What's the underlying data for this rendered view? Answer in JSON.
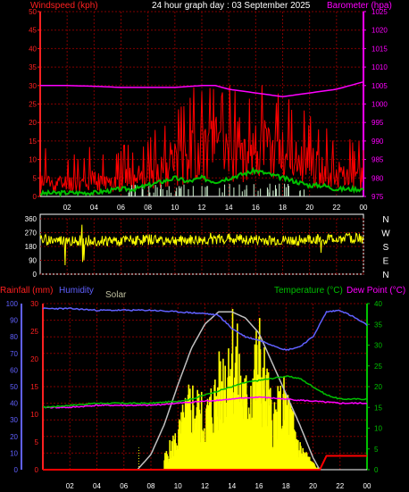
{
  "colors": {
    "wind": "#ff0000",
    "gust": "#ff0000",
    "avg_wind": "#00c000",
    "baro": "#ff00ff",
    "dir": "#ffff00",
    "rain": "#ff0000",
    "humidity": "#6060ff",
    "solar": "#c0c0c0",
    "solar_fill": "#ffff00",
    "temp": "#00c000",
    "dew": "#ff00ff",
    "grid": "#800000",
    "axis_white": "#ffffff",
    "axis_green": "#00c000",
    "axis_blue": "#6060ff",
    "axis_red": "#ff2020",
    "axis_magenta": "#ff00ff"
  },
  "header": {
    "wind_title": "Windspeed (kph)",
    "main_title": "24 hour graph day : 03 September 2025",
    "baro_title": "Barometer (hpa)",
    "rain_title": "Rainfall (mm)",
    "humidity_title": "Humidity",
    "solar_title": "Solar",
    "temp_title": "Temperature (°C)",
    "dew_title": "Dew Point (°C)"
  },
  "chart_data": [
    {
      "type": "line",
      "id": "wind",
      "title": "24 hour graph day : 03 September 2025",
      "x_ticks": [
        "02",
        "04",
        "06",
        "08",
        "10",
        "12",
        "14",
        "16",
        "18",
        "20",
        "22",
        "00"
      ],
      "left_axis": {
        "label": "Windspeed (kph)",
        "range": [
          0,
          50
        ],
        "ticks": [
          0,
          5,
          10,
          15,
          20,
          25,
          30,
          35,
          40,
          45,
          50
        ]
      },
      "right_axis": {
        "label": "Barometer (hpa)",
        "range": [
          975,
          1025
        ],
        "ticks": [
          975,
          980,
          985,
          990,
          995,
          1000,
          1005,
          1010,
          1015,
          1020,
          1025
        ]
      },
      "series": [
        {
          "name": "Windspeed (kph)",
          "hours": [
            0,
            1,
            2,
            3,
            4,
            5,
            6,
            7,
            8,
            9,
            10,
            11,
            12,
            13,
            14,
            15,
            16,
            17,
            18,
            19,
            20,
            21,
            22,
            23,
            24
          ],
          "gust_peak": [
            16,
            13,
            13,
            13,
            14,
            13,
            15,
            14,
            16,
            20,
            27,
            28,
            33,
            32,
            33,
            31,
            32,
            33,
            28,
            26,
            23,
            20,
            17,
            16,
            15
          ],
          "typical": [
            6,
            5,
            5,
            5,
            6,
            5,
            6,
            7,
            8,
            11,
            14,
            16,
            18,
            18,
            19,
            18,
            17,
            18,
            16,
            14,
            12,
            10,
            8,
            7,
            7
          ]
        },
        {
          "name": "Average wind",
          "hours": [
            0,
            2,
            4,
            5,
            6,
            7,
            8,
            9,
            10,
            11,
            12,
            13,
            14,
            15,
            16,
            17,
            18,
            19,
            20,
            21,
            22,
            23,
            24
          ],
          "values": [
            0.8,
            1,
            1,
            1.5,
            2,
            2,
            3,
            4,
            5,
            4,
            5,
            4,
            5,
            6,
            7,
            6,
            5,
            4,
            3,
            3,
            2,
            2,
            2
          ]
        },
        {
          "name": "Barometer (hpa)",
          "hours": [
            0,
            2,
            4,
            6,
            8,
            10,
            12,
            13,
            14,
            16,
            18,
            19,
            20,
            21,
            22,
            23,
            24
          ],
          "values": [
            1005,
            1005,
            1004.8,
            1004.5,
            1004.5,
            1004.5,
            1005,
            1005,
            1004,
            1003,
            1002,
            1002.5,
            1003,
            1003.5,
            1004,
            1005,
            1006
          ]
        }
      ]
    },
    {
      "type": "line",
      "id": "direction",
      "x_ticks": [
        "02",
        "04",
        "06",
        "08",
        "10",
        "12",
        "14",
        "16",
        "18",
        "20",
        "22",
        "00"
      ],
      "left_axis": {
        "range": [
          0,
          360
        ],
        "ticks": [
          0,
          90,
          180,
          270,
          360
        ]
      },
      "right_axis": {
        "ticks": [
          "N",
          "W",
          "S",
          "E",
          "N"
        ]
      },
      "series": [
        {
          "name": "Wind direction",
          "hours": [
            0,
            2,
            4,
            6,
            8,
            10,
            12,
            14,
            16,
            18,
            20,
            22,
            24
          ],
          "values": [
            225,
            215,
            220,
            215,
            225,
            220,
            220,
            230,
            220,
            215,
            225,
            230,
            235
          ]
        }
      ]
    },
    {
      "type": "line",
      "id": "temperature",
      "x_ticks": [
        "02",
        "04",
        "06",
        "08",
        "10",
        "12",
        "14",
        "16",
        "18",
        "20",
        "22",
        "00"
      ],
      "axes": {
        "humidity": {
          "range": [
            0,
            100
          ],
          "ticks": [
            0,
            10,
            20,
            30,
            40,
            50,
            60,
            70,
            80,
            90,
            100
          ]
        },
        "rainfall": {
          "range": [
            0,
            30
          ],
          "ticks": [
            0,
            5,
            10,
            15,
            20,
            25,
            30
          ]
        },
        "temperature": {
          "range": [
            0,
            40
          ],
          "ticks": [
            0,
            5,
            10,
            15,
            20,
            25,
            30,
            35,
            40
          ]
        }
      },
      "series": [
        {
          "name": "Humidity",
          "hours": [
            0,
            2,
            4,
            6,
            8,
            10,
            12,
            13,
            14,
            15,
            16,
            17,
            18,
            19,
            20,
            21,
            22,
            23,
            24
          ],
          "values": [
            97,
            97,
            96,
            96,
            96,
            95,
            94,
            93,
            85,
            80,
            78,
            75,
            72,
            74,
            80,
            95,
            96,
            92,
            87
          ]
        },
        {
          "name": "Temperature (°C)",
          "hours": [
            0,
            2,
            4,
            6,
            8,
            10,
            11,
            12,
            13,
            14,
            15,
            16,
            17,
            18,
            19,
            20,
            21,
            22,
            24
          ],
          "values": [
            15,
            15.5,
            16,
            16,
            16,
            16.5,
            17,
            18,
            19,
            20,
            21,
            21.5,
            22,
            22.5,
            22,
            20,
            18,
            17,
            17
          ]
        },
        {
          "name": "Dew Point (°C)",
          "hours": [
            0,
            2,
            4,
            6,
            8,
            10,
            12,
            14,
            16,
            18,
            20,
            22,
            24
          ],
          "values": [
            15,
            15,
            15.5,
            15.5,
            15.5,
            16,
            16.5,
            17,
            17.5,
            17,
            16.5,
            16,
            16
          ]
        },
        {
          "name": "Solar",
          "hours": [
            7,
            8,
            9,
            10,
            11,
            12,
            13,
            14,
            15,
            16,
            17,
            18,
            19,
            20,
            20.5
          ],
          "values": [
            0,
            5,
            15,
            28,
            40,
            48,
            52,
            52,
            50,
            45,
            35,
            25,
            15,
            4,
            0
          ]
        },
        {
          "name": "Solar measured",
          "hours": [
            9,
            10,
            11,
            12,
            13,
            14,
            15,
            16,
            17,
            18,
            19,
            20,
            20.5
          ],
          "values": [
            2,
            6,
            12,
            9,
            14,
            22,
            12,
            20,
            9,
            12,
            4,
            1,
            0
          ]
        },
        {
          "name": "Rainfall (mm)",
          "hours": [
            0,
            20.5,
            21,
            24
          ],
          "values": [
            0,
            0,
            2.5,
            2.5
          ]
        }
      ]
    }
  ]
}
